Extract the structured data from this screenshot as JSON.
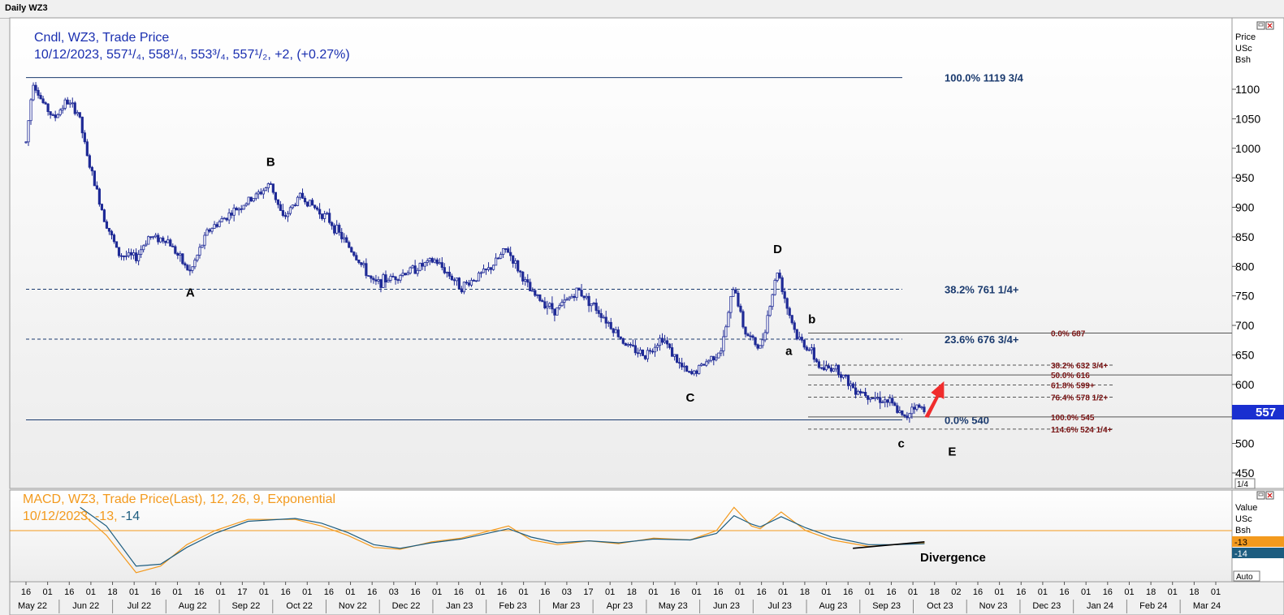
{
  "window": {
    "title": "Daily WZ3"
  },
  "price_panel": {
    "legend_line1": "Cndl, WZ3, Trade Price",
    "legend_line2": "10/12/2023, 557¹/₄, 558¹/₄, 553³/₄, 557¹/₂, +2, (+0.27%)",
    "axis_header": [
      "Price",
      "USc",
      "Bsh"
    ],
    "last_price_tag": "557",
    "page_indicator": "1/4"
  },
  "macd_panel": {
    "legend_line1": "MACD, WZ3, Trade Price(Last),  12, 26, 9, Exponential",
    "legend_line2_prefix": "10/12/2023, -13, ",
    "legend_line2_signal": "-14",
    "axis_header": [
      "Value",
      "USc",
      "Bsh"
    ],
    "macd_tag": "-13",
    "signal_tag": "-14",
    "divergence_label": "Divergence",
    "auto_button": "Auto"
  },
  "colors": {
    "candle": "#1f2a96",
    "fib_text": "#1a3a6e",
    "fib2_text": "#7a1414",
    "macd_line": "#f39a1e",
    "signal_line": "#1d5d80",
    "arrow": "#f02c2c",
    "price_tag_bg": "#1a2fd0",
    "macd_tag_bg": "#f39a1e",
    "signal_tag_bg": "#1d5d80"
  },
  "chart_data": [
    {
      "type": "candlestick",
      "title": "Cndl, WZ3, Trade Price",
      "y_ticks": [
        450,
        500,
        550,
        600,
        650,
        700,
        750,
        800,
        850,
        900,
        950,
        1000,
        1050,
        1100
      ],
      "ylim": [
        420,
        1160
      ],
      "x_day_labels": [
        "16",
        "01",
        "16",
        "01",
        "18",
        "01",
        "16",
        "01",
        "16",
        "01",
        "17",
        "01",
        "16",
        "01",
        "16",
        "01",
        "16",
        "03",
        "16",
        "01",
        "16",
        "01",
        "16",
        "01",
        "16",
        "03",
        "17",
        "01",
        "18",
        "01",
        "16",
        "01",
        "16",
        "01",
        "16",
        "01",
        "18",
        "01",
        "16",
        "01",
        "16",
        "01",
        "18",
        "02",
        "16",
        "01",
        "16",
        "01",
        "16",
        "01",
        "16",
        "01",
        "18",
        "01",
        "18",
        "01"
      ],
      "x_month_labels": [
        "May 22",
        "Jun 22",
        "Jul 22",
        "Aug 22",
        "Sep 22",
        "Oct 22",
        "Nov 22",
        "Dec 22",
        "Jan 23",
        "Feb 23",
        "Mar 23",
        "Apr 23",
        "May 23",
        "Jun 23",
        "Jul 23",
        "Aug 23",
        "Sep 23",
        "Oct 23",
        "Nov 23",
        "Dec 23",
        "Jan 24",
        "Feb 24",
        "Mar 24"
      ],
      "price_path": [
        [
          "2022-05-16",
          1010
        ],
        [
          "2022-05-20",
          1115
        ],
        [
          "2022-05-25",
          1080
        ],
        [
          "2022-06-01",
          1050
        ],
        [
          "2022-06-08",
          1080
        ],
        [
          "2022-06-15",
          1060
        ],
        [
          "2022-06-20",
          985
        ],
        [
          "2022-06-30",
          880
        ],
        [
          "2022-07-08",
          820
        ],
        [
          "2022-07-18",
          815
        ],
        [
          "2022-07-25",
          850
        ],
        [
          "2022-08-05",
          845
        ],
        [
          "2022-08-15",
          800
        ],
        [
          "2022-08-18",
          790
        ],
        [
          "2022-08-28",
          860
        ],
        [
          "2022-09-10",
          890
        ],
        [
          "2022-09-25",
          920
        ],
        [
          "2022-10-03",
          940
        ],
        [
          "2022-10-10",
          880
        ],
        [
          "2022-10-20",
          920
        ],
        [
          "2022-11-05",
          880
        ],
        [
          "2022-11-20",
          820
        ],
        [
          "2022-12-01",
          770
        ],
        [
          "2022-12-15",
          785
        ],
        [
          "2023-01-05",
          810
        ],
        [
          "2023-01-20",
          765
        ],
        [
          "2023-02-05",
          795
        ],
        [
          "2023-02-15",
          830
        ],
        [
          "2023-03-01",
          755
        ],
        [
          "2023-03-15",
          725
        ],
        [
          "2023-03-28",
          760
        ],
        [
          "2023-04-10",
          720
        ],
        [
          "2023-04-25",
          665
        ],
        [
          "2023-05-05",
          650
        ],
        [
          "2023-05-15",
          680
        ],
        [
          "2023-05-25",
          632
        ],
        [
          "2023-05-31",
          615
        ],
        [
          "2023-06-10",
          640
        ],
        [
          "2023-06-18",
          660
        ],
        [
          "2023-06-25",
          770
        ],
        [
          "2023-07-01",
          690
        ],
        [
          "2023-07-10",
          660
        ],
        [
          "2023-07-20",
          795
        ],
        [
          "2023-07-25",
          735
        ],
        [
          "2023-07-31",
          680
        ],
        [
          "2023-08-07",
          660
        ],
        [
          "2023-08-14",
          625
        ],
        [
          "2023-08-22",
          630
        ],
        [
          "2023-09-01",
          595
        ],
        [
          "2023-09-12",
          580
        ],
        [
          "2023-09-22",
          570
        ],
        [
          "2023-10-01",
          540
        ],
        [
          "2023-10-05",
          565
        ],
        [
          "2023-10-12",
          557.5
        ]
      ],
      "last": {
        "date": "2023-10-12",
        "open": 557.25,
        "high": 558.25,
        "low": 553.75,
        "close": 557.5,
        "change": 2,
        "change_pct": 0.27
      },
      "wave_labels": [
        {
          "label": "A",
          "date": "2022-08-18",
          "price": 790
        },
        {
          "label": "B",
          "date": "2022-10-03",
          "price": 940
        },
        {
          "label": "C",
          "date": "2023-05-31",
          "price": 615
        },
        {
          "label": "D",
          "date": "2023-07-20",
          "price": 795
        },
        {
          "label": "E",
          "date": "2023-10-12",
          "price": 540
        },
        {
          "label": "a",
          "date": "2023-07-31",
          "price": 680
        },
        {
          "label": "b",
          "date": "2023-08-03",
          "price": 687
        },
        {
          "label": "c",
          "date": "2023-10-01",
          "price": 540
        }
      ],
      "fib_retracement": [
        {
          "label": "100.0% 1119 3/4",
          "price": 1119.75,
          "style": "solid"
        },
        {
          "label": "38.2%   761 1/4+",
          "price": 761.25,
          "style": "dashed"
        },
        {
          "label": "23.6%   676 3/4+",
          "price": 676.75,
          "style": "dashed"
        },
        {
          "label": "0.0%      540",
          "price": 540,
          "style": "solid"
        }
      ],
      "fib_extension": [
        {
          "label": "0.0%   687",
          "price": 687,
          "style": "solid"
        },
        {
          "label": "38.2%   632 3/4+",
          "price": 632.75,
          "style": "dashed"
        },
        {
          "label": "50.0%   616",
          "price": 616,
          "style": "solid"
        },
        {
          "label": "61.8%   599+",
          "price": 599,
          "style": "dashed"
        },
        {
          "label": "76.4%   578 1/2+",
          "price": 578.5,
          "style": "dashed"
        },
        {
          "label": "100.0%   545",
          "price": 545,
          "style": "solid"
        },
        {
          "label": "114.6%   524 1/4+",
          "price": 524.25,
          "style": "dashed"
        }
      ]
    },
    {
      "type": "line",
      "title": "MACD, WZ3, Trade Price(Last),  12, 26, 9, Exponential",
      "series": [
        {
          "name": "MACD",
          "points": [
            [
              "2022-06-16",
              20
            ],
            [
              "2022-07-01",
              -5
            ],
            [
              "2022-07-18",
              -45
            ],
            [
              "2022-08-01",
              -38
            ],
            [
              "2022-08-16",
              -15
            ],
            [
              "2022-09-01",
              0
            ],
            [
              "2022-09-20",
              12
            ],
            [
              "2022-10-17",
              12
            ],
            [
              "2022-11-01",
              5
            ],
            [
              "2022-11-16",
              -5
            ],
            [
              "2022-12-01",
              -18
            ],
            [
              "2022-12-16",
              -20
            ],
            [
              "2023-01-03",
              -12
            ],
            [
              "2023-01-20",
              -8
            ],
            [
              "2023-02-16",
              5
            ],
            [
              "2023-03-01",
              -10
            ],
            [
              "2023-03-16",
              -15
            ],
            [
              "2023-04-03",
              -11
            ],
            [
              "2023-04-20",
              -14
            ],
            [
              "2023-05-10",
              -8
            ],
            [
              "2023-05-31",
              -10
            ],
            [
              "2023-06-15",
              0
            ],
            [
              "2023-06-25",
              25
            ],
            [
              "2023-07-05",
              5
            ],
            [
              "2023-07-10",
              2
            ],
            [
              "2023-07-22",
              20
            ],
            [
              "2023-08-05",
              0
            ],
            [
              "2023-08-20",
              -10
            ],
            [
              "2023-09-10",
              -17
            ],
            [
              "2023-09-25",
              -15
            ],
            [
              "2023-10-12",
              -13
            ]
          ]
        },
        {
          "name": "Signal",
          "points": [
            [
              "2022-06-16",
              25
            ],
            [
              "2022-07-01",
              5
            ],
            [
              "2022-07-18",
              -38
            ],
            [
              "2022-08-01",
              -36
            ],
            [
              "2022-08-16",
              -18
            ],
            [
              "2022-09-01",
              -3
            ],
            [
              "2022-09-20",
              10
            ],
            [
              "2022-10-17",
              13
            ],
            [
              "2022-11-01",
              8
            ],
            [
              "2022-11-16",
              -2
            ],
            [
              "2022-12-01",
              -15
            ],
            [
              "2022-12-16",
              -19
            ],
            [
              "2023-01-03",
              -13
            ],
            [
              "2023-01-20",
              -9
            ],
            [
              "2023-02-16",
              2
            ],
            [
              "2023-03-01",
              -7
            ],
            [
              "2023-03-16",
              -13
            ],
            [
              "2023-04-03",
              -11
            ],
            [
              "2023-04-20",
              -13
            ],
            [
              "2023-05-10",
              -9
            ],
            [
              "2023-05-31",
              -10
            ],
            [
              "2023-06-15",
              -3
            ],
            [
              "2023-06-25",
              16
            ],
            [
              "2023-07-05",
              7
            ],
            [
              "2023-07-10",
              4
            ],
            [
              "2023-07-22",
              15
            ],
            [
              "2023-08-05",
              3
            ],
            [
              "2023-08-20",
              -7
            ],
            [
              "2023-09-10",
              -15
            ],
            [
              "2023-09-25",
              -15
            ],
            [
              "2023-10-12",
              -14
            ]
          ]
        }
      ],
      "zero_line": 0
    }
  ]
}
